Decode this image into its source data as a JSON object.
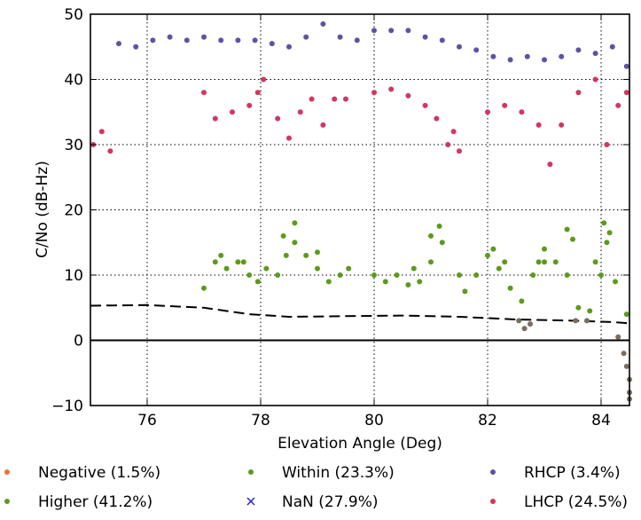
{
  "chart_data": {
    "type": "scatter",
    "xlabel": "Elevation Angle (Deg)",
    "ylabel": "C/No (dB-Hz)",
    "xlim": [
      75,
      84.5
    ],
    "ylim": [
      -10,
      50
    ],
    "x_ticks": [
      76,
      78,
      80,
      82,
      84
    ],
    "y_ticks": [
      -10,
      0,
      10,
      20,
      30,
      40,
      50
    ],
    "grid": true,
    "legend_position": "bottom",
    "legend": [
      {
        "label": "Negative (1.5%)",
        "color": "#e8733a",
        "marker": "dot"
      },
      {
        "label": "Within (23.3%)",
        "color": "#5c9a1e",
        "marker": "dot"
      },
      {
        "label": "RHCP (3.4%)",
        "color": "#5b54a3",
        "marker": "dot"
      },
      {
        "label": "Higher (41.2%)",
        "color": "#5c9a1e",
        "marker": "dot"
      },
      {
        "label": "NaN (27.9%)",
        "color": "#1f1fd6",
        "marker": "x"
      },
      {
        "label": "LHCP (24.5%)",
        "color": "#d2365f",
        "marker": "dot"
      }
    ],
    "reference_lines": [
      {
        "style": "solid",
        "color": "#000000",
        "y": 0
      },
      {
        "style": "dashed",
        "color": "#000000",
        "x": [
          75.0,
          76.0,
          77.0,
          77.8,
          78.5,
          79.5,
          80.5,
          81.5,
          82.5,
          83.5,
          84.2,
          84.5
        ],
        "y": [
          5.3,
          5.4,
          5.0,
          4.0,
          3.6,
          3.7,
          3.8,
          3.6,
          3.2,
          3.0,
          2.8,
          2.6
        ]
      }
    ],
    "series": [
      {
        "name": "RHCP",
        "color": "#5b54a3",
        "x": [
          75.5,
          75.8,
          76.1,
          76.4,
          76.7,
          77.0,
          77.3,
          77.6,
          77.9,
          78.2,
          78.5,
          78.8,
          79.1,
          79.4,
          79.7,
          80.0,
          80.3,
          80.6,
          80.9,
          81.2,
          81.5,
          81.8,
          82.1,
          82.4,
          82.7,
          83.0,
          83.3,
          83.6,
          83.9,
          84.2,
          84.45
        ],
        "y": [
          45.5,
          45.0,
          46.0,
          46.5,
          46.0,
          46.5,
          46.0,
          46.0,
          46.0,
          45.5,
          45.0,
          46.5,
          48.5,
          46.5,
          46.0,
          47.5,
          47.5,
          47.5,
          46.5,
          46.0,
          45.0,
          44.5,
          43.5,
          43.0,
          43.5,
          43.0,
          43.5,
          44.5,
          44.0,
          45.0,
          42.0
        ]
      },
      {
        "name": "LHCP",
        "color": "#d2365f",
        "x": [
          75.05,
          75.2,
          75.35,
          77.0,
          77.2,
          77.5,
          77.8,
          77.95,
          78.05,
          78.3,
          78.5,
          78.7,
          78.9,
          79.1,
          79.3,
          79.5,
          80.0,
          80.3,
          80.6,
          80.9,
          81.1,
          81.3,
          81.4,
          81.5,
          82.0,
          82.3,
          82.6,
          82.9,
          83.1,
          83.3,
          83.6,
          83.9,
          84.1,
          84.3,
          84.45
        ],
        "y": [
          30.0,
          32.0,
          29.0,
          38.0,
          34.0,
          35.0,
          36.0,
          38.0,
          40.0,
          34.0,
          31.0,
          35.0,
          37.0,
          33.0,
          37.0,
          37.0,
          38.0,
          38.5,
          37.5,
          36.0,
          34.0,
          30.0,
          32.0,
          29.0,
          35.0,
          36.0,
          35.0,
          33.0,
          27.0,
          33.0,
          38.0,
          40.0,
          30.0,
          36.0,
          38.0
        ]
      },
      {
        "name": "Within",
        "color": "#5c9a1e",
        "x": [
          77.0,
          77.2,
          77.4,
          77.6,
          77.8,
          77.95,
          78.1,
          78.3,
          78.45,
          78.6,
          78.8,
          79.0,
          79.2,
          79.4,
          79.55,
          80.0,
          80.2,
          80.4,
          80.6,
          80.8,
          81.0,
          81.2,
          81.5,
          81.6,
          81.8,
          82.0,
          82.2,
          82.4,
          82.6,
          82.8,
          83.0,
          83.2,
          83.4,
          83.6,
          83.8,
          84.0,
          84.1,
          84.25,
          84.45
        ],
        "y": [
          8.0,
          12.0,
          11.0,
          12.0,
          10.0,
          9.0,
          11.0,
          10.0,
          13.0,
          15.0,
          13.0,
          11.0,
          9.0,
          10.0,
          11.0,
          10.0,
          9.0,
          10.0,
          8.5,
          9.0,
          12.0,
          15.0,
          10.0,
          7.5,
          10.0,
          13.0,
          11.0,
          8.0,
          6.0,
          10.0,
          12.0,
          12.0,
          10.0,
          5.0,
          4.5,
          10.0,
          15.0,
          9.0,
          4.0
        ]
      },
      {
        "name": "Higher",
        "color": "#5c9a1e",
        "x": [
          77.3,
          77.7,
          78.4,
          78.6,
          79.0,
          80.7,
          81.0,
          81.15,
          82.1,
          82.3,
          82.9,
          83.0,
          83.4,
          83.5,
          83.9,
          84.05,
          84.15
        ],
        "y": [
          13.0,
          12.0,
          16.0,
          18.0,
          13.5,
          11.0,
          16.0,
          17.5,
          14.0,
          12.0,
          12.0,
          14.0,
          17.0,
          15.5,
          12.0,
          18.0,
          16.5
        ]
      },
      {
        "name": "Negative",
        "color": "#7a6c5e",
        "x": [
          82.55,
          82.65,
          82.75,
          83.55,
          83.75,
          84.3,
          84.4,
          84.45,
          84.5,
          84.5,
          84.5
        ],
        "y": [
          3.0,
          1.8,
          2.5,
          3.0,
          3.0,
          0.5,
          -2.0,
          -4.0,
          -6.0,
          -8.0,
          -9.0
        ]
      }
    ]
  }
}
